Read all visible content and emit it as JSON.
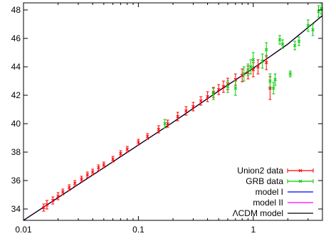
{
  "chart_data": {
    "type": "scatter",
    "title": "",
    "xlabel": "",
    "ylabel": "",
    "xscale": "log",
    "xlim": [
      0.01,
      4.0
    ],
    "ylim": [
      33.2,
      48.5
    ],
    "x_ticks": [
      0.01,
      0.1,
      1
    ],
    "x_tick_labels": [
      "0.01",
      "0.1",
      "1"
    ],
    "y_ticks": [
      34,
      36,
      38,
      40,
      42,
      44,
      46,
      48
    ],
    "y_tick_labels": [
      "34",
      "36",
      "38",
      "40",
      "42",
      "44",
      "46",
      "48"
    ],
    "grid": false,
    "legend_position": "bottom-right",
    "series": [
      {
        "name": "Union2 data",
        "kind": "points_errorbars",
        "color": "#ff0000",
        "points": [
          {
            "x": 0.015,
            "y": 34.1,
            "err": 0.25
          },
          {
            "x": 0.016,
            "y": 34.3,
            "err": 0.3
          },
          {
            "x": 0.018,
            "y": 34.6,
            "err": 0.25
          },
          {
            "x": 0.02,
            "y": 34.9,
            "err": 0.25
          },
          {
            "x": 0.022,
            "y": 35.2,
            "err": 0.2
          },
          {
            "x": 0.025,
            "y": 35.5,
            "err": 0.2
          },
          {
            "x": 0.028,
            "y": 35.8,
            "err": 0.2
          },
          {
            "x": 0.032,
            "y": 36.1,
            "err": 0.2
          },
          {
            "x": 0.036,
            "y": 36.4,
            "err": 0.2
          },
          {
            "x": 0.04,
            "y": 36.6,
            "err": 0.2
          },
          {
            "x": 0.045,
            "y": 36.9,
            "err": 0.2
          },
          {
            "x": 0.05,
            "y": 37.1,
            "err": 0.2
          },
          {
            "x": 0.06,
            "y": 37.5,
            "err": 0.2
          },
          {
            "x": 0.07,
            "y": 37.9,
            "err": 0.2
          },
          {
            "x": 0.08,
            "y": 38.2,
            "err": 0.2
          },
          {
            "x": 0.1,
            "y": 38.7,
            "err": 0.2
          },
          {
            "x": 0.12,
            "y": 39.1,
            "err": 0.2
          },
          {
            "x": 0.15,
            "y": 39.6,
            "err": 0.25
          },
          {
            "x": 0.18,
            "y": 40.0,
            "err": 0.25
          },
          {
            "x": 0.22,
            "y": 40.5,
            "err": 0.3
          },
          {
            "x": 0.26,
            "y": 40.9,
            "err": 0.3
          },
          {
            "x": 0.3,
            "y": 41.2,
            "err": 0.3
          },
          {
            "x": 0.35,
            "y": 41.6,
            "err": 0.3
          },
          {
            "x": 0.4,
            "y": 41.9,
            "err": 0.35
          },
          {
            "x": 0.45,
            "y": 42.2,
            "err": 0.35
          },
          {
            "x": 0.5,
            "y": 42.4,
            "err": 0.35
          },
          {
            "x": 0.55,
            "y": 42.6,
            "err": 0.4
          },
          {
            "x": 0.6,
            "y": 42.8,
            "err": 0.4
          },
          {
            "x": 0.7,
            "y": 43.1,
            "err": 0.4
          },
          {
            "x": 0.8,
            "y": 43.4,
            "err": 0.45
          },
          {
            "x": 0.9,
            "y": 43.6,
            "err": 0.45
          },
          {
            "x": 1.0,
            "y": 43.8,
            "err": 0.5
          },
          {
            "x": 1.1,
            "y": 44.0,
            "err": 0.5
          },
          {
            "x": 1.3,
            "y": 44.3,
            "err": 0.5
          },
          {
            "x": 1.4,
            "y": 42.5,
            "err": 0.8
          }
        ]
      },
      {
        "name": "GRB data",
        "kind": "points_errorbars",
        "color": "#00cc00",
        "points": [
          {
            "x": 0.17,
            "y": 40.0,
            "err": 0.3
          },
          {
            "x": 0.45,
            "y": 42.1,
            "err": 0.4
          },
          {
            "x": 0.6,
            "y": 42.6,
            "err": 0.4
          },
          {
            "x": 0.7,
            "y": 42.5,
            "err": 0.5
          },
          {
            "x": 0.83,
            "y": 43.5,
            "err": 0.5
          },
          {
            "x": 0.9,
            "y": 43.8,
            "err": 0.4
          },
          {
            "x": 0.95,
            "y": 44.0,
            "err": 0.5
          },
          {
            "x": 1.0,
            "y": 44.5,
            "err": 0.5
          },
          {
            "x": 1.2,
            "y": 44.4,
            "err": 0.5
          },
          {
            "x": 1.3,
            "y": 45.2,
            "err": 0.5
          },
          {
            "x": 1.4,
            "y": 43.0,
            "err": 0.5
          },
          {
            "x": 1.5,
            "y": 42.5,
            "err": 0.4
          },
          {
            "x": 1.55,
            "y": 43.1,
            "err": 0.4
          },
          {
            "x": 1.7,
            "y": 45.9,
            "err": 0.3
          },
          {
            "x": 1.8,
            "y": 45.6,
            "err": 0.3
          },
          {
            "x": 2.1,
            "y": 43.5,
            "err": 0.2
          },
          {
            "x": 2.3,
            "y": 45.5,
            "err": 0.3
          },
          {
            "x": 2.5,
            "y": 45.8,
            "err": 0.3
          },
          {
            "x": 3.0,
            "y": 46.9,
            "err": 0.4
          },
          {
            "x": 3.3,
            "y": 46.6,
            "err": 0.4
          },
          {
            "x": 3.7,
            "y": 47.9,
            "err": 0.4
          },
          {
            "x": 3.9,
            "y": 48.1,
            "err": 0.4
          }
        ]
      },
      {
        "name": "model I",
        "kind": "line",
        "color": "#0000ff",
        "x": [
          0.01,
          0.02,
          0.05,
          0.1,
          0.2,
          0.5,
          1,
          2,
          4
        ],
        "y": [
          33.2,
          34.8,
          36.9,
          38.5,
          40.1,
          42.3,
          43.9,
          45.6,
          47.6
        ]
      },
      {
        "name": "model II",
        "kind": "line",
        "color": "#ff00ff",
        "x": [
          0.01,
          0.02,
          0.05,
          0.1,
          0.2,
          0.5,
          1,
          2,
          4
        ],
        "y": [
          33.2,
          34.8,
          36.9,
          38.5,
          40.1,
          42.3,
          43.9,
          45.6,
          47.6
        ]
      },
      {
        "name": "ΛCDM model",
        "kind": "line",
        "color": "#000000",
        "x": [
          0.01,
          0.02,
          0.05,
          0.1,
          0.2,
          0.5,
          1,
          2,
          4
        ],
        "y": [
          33.2,
          34.8,
          36.9,
          38.5,
          40.1,
          42.3,
          43.9,
          45.6,
          47.6
        ]
      }
    ]
  }
}
